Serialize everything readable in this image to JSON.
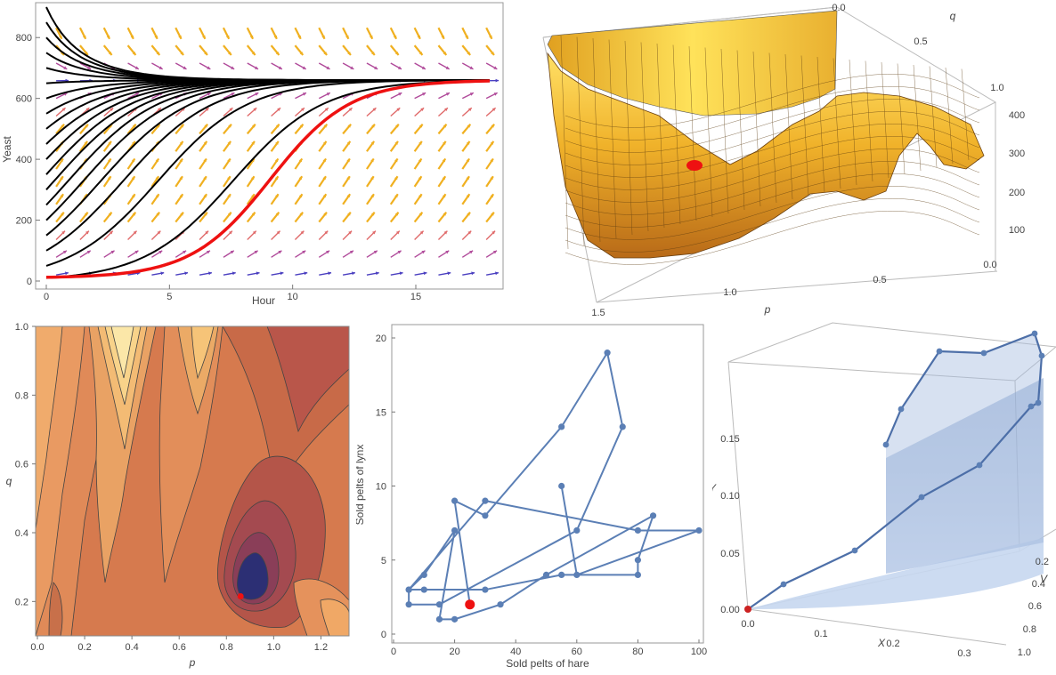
{
  "colors": {
    "trajectory": "#000000",
    "highlight": "#ee1111",
    "series_blue": "#5b7fb5",
    "surface_gold": "#e6a020",
    "contour_min": "#1e2f7a"
  },
  "chart_data": [
    {
      "type": "line",
      "panel": "growth-curves",
      "xlabel": "Hour",
      "ylabel": "Yeast",
      "xlim": [
        0,
        18
      ],
      "ylim": [
        0,
        900
      ],
      "xticks": [
        "0",
        "5",
        "10",
        "15"
      ],
      "yticks": [
        "0",
        "200",
        "400",
        "600",
        "800"
      ],
      "equilibrium": 660,
      "black_trajectory_starts": [
        10,
        50,
        100,
        150,
        200,
        250,
        300,
        350,
        400,
        450,
        500,
        550,
        600,
        650,
        700,
        750,
        800,
        850,
        900
      ],
      "red_trajectory": {
        "x0": 0,
        "y0": 10,
        "midpoint_hour": 9.1,
        "growth_rate": 0.55,
        "carrying_capacity": 660
      },
      "vector_field": "arrows colored by magnitude (blue small, orange/yellow large)"
    },
    {
      "type": "surface3d",
      "panel": "error-surface",
      "xlabel": "p",
      "ylabel": "q",
      "p_ticks": [
        "1.5",
        "1.0",
        "0.5",
        "0.0"
      ],
      "q_ticks": [
        "0.0",
        "0.5",
        "1.0"
      ],
      "z_ticks": [
        "400",
        "300",
        "200",
        "100"
      ],
      "minimum_marker": {
        "p": 0.85,
        "q": 0.21
      }
    },
    {
      "type": "heatmap",
      "panel": "contour-map",
      "xlabel": "p",
      "ylabel": "q",
      "xlim": [
        0,
        1.3
      ],
      "ylim": [
        0.1,
        1.0
      ],
      "xticks": [
        "0.0",
        "0.2",
        "0.4",
        "0.6",
        "0.8",
        "1.0",
        "1.2"
      ],
      "yticks": [
        "0.2",
        "0.4",
        "0.6",
        "0.8",
        "1.0"
      ],
      "minimum": {
        "p": 0.86,
        "q": 0.215
      }
    },
    {
      "type": "scatter",
      "panel": "phase-plot",
      "xlabel": "Sold pelts of hare",
      "ylabel": "Sold pelts of lynx",
      "xlim": [
        0,
        100
      ],
      "ylim": [
        0,
        20
      ],
      "xticks": [
        "0",
        "20",
        "40",
        "60",
        "80",
        "100"
      ],
      "yticks": [
        "0",
        "5",
        "10",
        "15",
        "20"
      ],
      "points": [
        [
          25,
          2
        ],
        [
          20,
          9
        ],
        [
          30,
          8
        ],
        [
          55,
          14
        ],
        [
          70,
          19
        ],
        [
          75,
          14
        ],
        [
          60,
          7
        ],
        [
          15,
          2
        ],
        [
          5,
          2
        ],
        [
          5,
          3
        ],
        [
          10,
          3
        ],
        [
          30,
          3
        ],
        [
          55,
          4
        ],
        [
          80,
          4
        ],
        [
          80,
          5
        ],
        [
          85,
          8
        ],
        [
          50,
          4
        ],
        [
          35,
          2
        ],
        [
          20,
          1
        ],
        [
          15,
          1
        ],
        [
          20,
          7
        ],
        [
          10,
          4
        ],
        [
          5,
          3
        ],
        [
          30,
          9
        ],
        [
          80,
          7
        ],
        [
          100,
          7
        ],
        [
          60,
          4
        ],
        [
          55,
          10
        ]
      ],
      "highlight_point": [
        25,
        2
      ]
    },
    {
      "type": "line3d",
      "panel": "trajectory-3d",
      "xlabel": "X",
      "ylabel": "Y",
      "zlabel": "V",
      "y_ticks": [
        "0.00",
        "0.05",
        "0.10",
        "0.15"
      ],
      "x_ticks": [
        "0.0",
        "0.1",
        "0.2",
        "0.3"
      ],
      "v_ticks": [
        "0.2",
        "0.4",
        "0.6",
        "0.8",
        "1.0"
      ],
      "origin_marker": [
        0,
        0,
        0
      ]
    }
  ]
}
